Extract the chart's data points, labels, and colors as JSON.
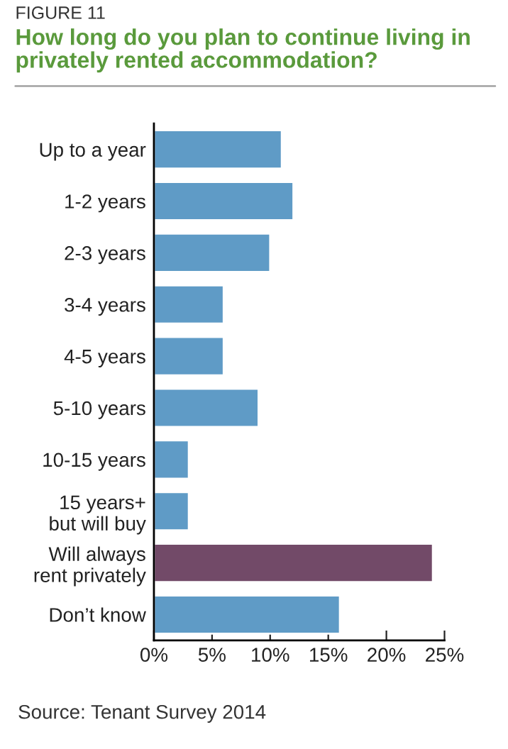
{
  "chart_data": {
    "type": "bar",
    "orientation": "horizontal",
    "title": "How long do you plan to continue living in privately rented accommodation?",
    "categories": [
      "Up to a year",
      "1-2 years",
      "2-3 years",
      "3-4 years",
      "4-5 years",
      "5-10 years",
      "10-15 years",
      "15 years+\nbut will buy",
      "Will always\nrent privately",
      "Don’t know"
    ],
    "values": [
      11,
      12,
      10,
      6,
      6,
      9,
      3,
      3,
      24,
      16
    ],
    "colors": [
      "#5f9bc6",
      "#5f9bc6",
      "#5f9bc6",
      "#5f9bc6",
      "#5f9bc6",
      "#5f9bc6",
      "#5f9bc6",
      "#5f9bc6",
      "#724a68",
      "#5f9bc6"
    ],
    "xlim": [
      0,
      25
    ],
    "xticks": [
      {
        "value": 0,
        "label": "0%"
      },
      {
        "value": 5,
        "label": "5%"
      },
      {
        "value": 10,
        "label": "10%"
      },
      {
        "value": 15,
        "label": "15%"
      },
      {
        "value": 20,
        "label": "20%"
      },
      {
        "value": 25,
        "label": "25%"
      }
    ],
    "grid": false,
    "legend": false,
    "annotations": [
      "FIGURE 11",
      "Source: Tenant Survey 2014"
    ]
  }
}
